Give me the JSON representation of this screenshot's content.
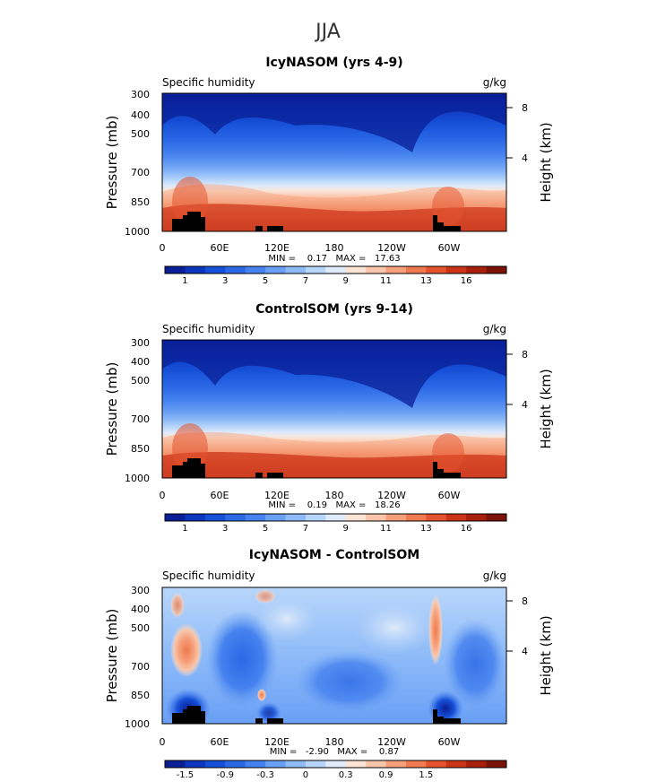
{
  "figure_title": "JJA",
  "chart_data": [
    {
      "type": "heatmap",
      "title": "IcyNASOM (yrs 4-9)",
      "left_label": "Specific humidity",
      "right_label": "g/kg",
      "xlabel": "",
      "ylabel": "Pressure (mb)",
      "ylabel_right": "Height (km)",
      "x_ticks": [
        "0",
        "60E",
        "120E",
        "180",
        "120W",
        "60W"
      ],
      "x_range": [
        0,
        360
      ],
      "y_ticks": [
        "300",
        "400",
        "500",
        "700",
        "850",
        "1000"
      ],
      "y_range": [
        1000,
        300
      ],
      "right_ticks": [
        "8",
        "4"
      ],
      "stats": "MIN =    0.17   MAX =   17.63",
      "colorbar": {
        "labels": [
          "1",
          "3",
          "5",
          "7",
          "9",
          "11",
          "13",
          "16"
        ],
        "colors": [
          "#0a1f96",
          "#0d36bf",
          "#1650d8",
          "#2a68e6",
          "#4682ef",
          "#699ff5",
          "#8ebbf8",
          "#b8d6fa",
          "#dfeafb",
          "#fbe4d4",
          "#f9c6ab",
          "#f6a07b",
          "#f07a50",
          "#e4532d",
          "#cc3418",
          "#a8200c",
          "#7a1208"
        ]
      }
    },
    {
      "type": "heatmap",
      "title": "ControlSOM (yrs 9-14)",
      "left_label": "Specific humidity",
      "right_label": "g/kg",
      "xlabel": "",
      "ylabel": "Pressure (mb)",
      "ylabel_right": "Height (km)",
      "x_ticks": [
        "0",
        "60E",
        "120E",
        "180",
        "120W",
        "60W"
      ],
      "x_range": [
        0,
        360
      ],
      "y_ticks": [
        "300",
        "400",
        "500",
        "700",
        "850",
        "1000"
      ],
      "y_range": [
        1000,
        300
      ],
      "right_ticks": [
        "8",
        "4"
      ],
      "stats": "MIN =    0.19   MAX =   18.26",
      "colorbar": {
        "labels": [
          "1",
          "3",
          "5",
          "7",
          "9",
          "11",
          "13",
          "16"
        ],
        "colors": [
          "#0a1f96",
          "#0d36bf",
          "#1650d8",
          "#2a68e6",
          "#4682ef",
          "#699ff5",
          "#8ebbf8",
          "#b8d6fa",
          "#dfeafb",
          "#fbe4d4",
          "#f9c6ab",
          "#f6a07b",
          "#f07a50",
          "#e4532d",
          "#cc3418",
          "#a8200c",
          "#7a1208"
        ]
      }
    },
    {
      "type": "heatmap",
      "title": "IcyNASOM - ControlSOM",
      "left_label": "Specific humidity",
      "right_label": "g/kg",
      "xlabel": "",
      "ylabel": "Pressure (mb)",
      "ylabel_right": "Height (km)",
      "x_ticks": [
        "0",
        "60E",
        "120E",
        "180",
        "120W",
        "60W"
      ],
      "x_range": [
        0,
        360
      ],
      "y_ticks": [
        "300",
        "400",
        "500",
        "700",
        "850",
        "1000"
      ],
      "y_range": [
        1000,
        300
      ],
      "right_ticks": [
        "8",
        "4"
      ],
      "stats": "MIN =   -2.90   MAX =    0.87",
      "colorbar": {
        "labels": [
          "-1.5",
          "-0.9",
          "-0.3",
          "0",
          "0.3",
          "0.9",
          "1.5"
        ],
        "colors": [
          "#0a1f96",
          "#0d36bf",
          "#1650d8",
          "#2a68e6",
          "#4682ef",
          "#699ff5",
          "#8ebbf8",
          "#b8d6fa",
          "#dfeafb",
          "#fbe4d4",
          "#f9c6ab",
          "#f6a07b",
          "#f07a50",
          "#e4532d",
          "#cc3418",
          "#a8200c",
          "#7a1208"
        ]
      }
    }
  ]
}
